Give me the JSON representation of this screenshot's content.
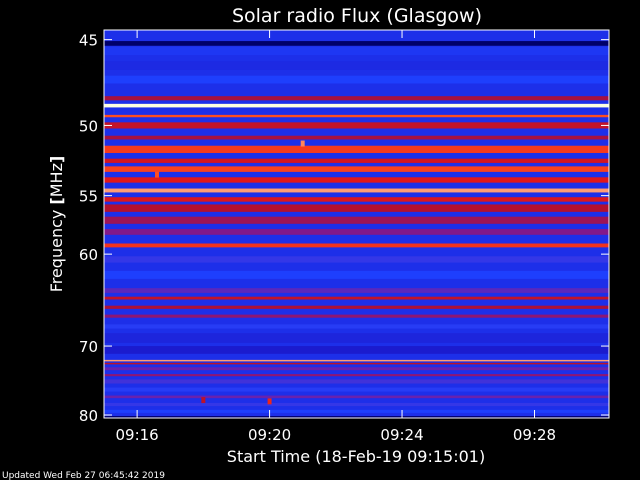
{
  "chart_data": {
    "type": "heatmap",
    "title": "Solar radio Flux (Glasgow)",
    "xlabel": "Start Time (18-Feb-19 09:15:01)",
    "ylabel_main": "Frequency",
    "ylabel_unit": "MHz",
    "x_ticks": [
      "09:16",
      "09:20",
      "09:24",
      "09:28"
    ],
    "x_tick_minutes": [
      1,
      5,
      9,
      13
    ],
    "x_range_minutes": [
      0,
      15.25
    ],
    "y_ticks": [
      45,
      50,
      55,
      60,
      70,
      80
    ],
    "y_scale": "reciprocal",
    "y_range": [
      44.5,
      80.5
    ],
    "colormap": [
      "#00006a",
      "#1c1cd0",
      "#1e40ff",
      "#7a1a9a",
      "#b01030",
      "#e81818",
      "#ff5020",
      "#ffffe0"
    ],
    "background_intensity": 0.22,
    "bands": [
      {
        "freq": 45.2,
        "intensity": 0.0,
        "width": 0.25
      },
      {
        "freq": 45.6,
        "intensity": 0.25,
        "width": 0.45
      },
      {
        "freq": 46.4,
        "intensity": 0.2,
        "width": 0.5
      },
      {
        "freq": 47.2,
        "intensity": 0.28,
        "width": 0.45
      },
      {
        "freq": 48.3,
        "intensity": 0.55,
        "width": 0.25
      },
      {
        "freq": 48.75,
        "intensity": 1.0,
        "width": 0.22
      },
      {
        "freq": 49.4,
        "intensity": 0.85,
        "width": 0.15
      },
      {
        "freq": 50.0,
        "intensity": 0.62,
        "width": 0.4
      },
      {
        "freq": 50.8,
        "intensity": 0.55,
        "width": 0.25
      },
      {
        "freq": 51.6,
        "intensity": 0.8,
        "width": 0.5
      },
      {
        "freq": 52.4,
        "intensity": 0.66,
        "width": 0.3
      },
      {
        "freq": 53.0,
        "intensity": 0.82,
        "width": 0.4
      },
      {
        "freq": 53.8,
        "intensity": 0.7,
        "width": 0.4
      },
      {
        "freq": 54.6,
        "intensity": 0.92,
        "width": 0.3
      },
      {
        "freq": 55.3,
        "intensity": 0.68,
        "width": 0.35
      },
      {
        "freq": 56.0,
        "intensity": 0.58,
        "width": 0.6
      },
      {
        "freq": 57.0,
        "intensity": 0.52,
        "width": 0.6
      },
      {
        "freq": 58.0,
        "intensity": 0.45,
        "width": 0.5
      },
      {
        "freq": 59.2,
        "intensity": 0.78,
        "width": 0.35
      },
      {
        "freq": 60.5,
        "intensity": 0.32,
        "width": 0.6
      },
      {
        "freq": 62.0,
        "intensity": 0.28,
        "width": 0.8
      },
      {
        "freq": 63.6,
        "intensity": 0.38,
        "width": 0.5
      },
      {
        "freq": 64.4,
        "intensity": 0.62,
        "width": 0.3
      },
      {
        "freq": 65.4,
        "intensity": 0.56,
        "width": 0.35
      },
      {
        "freq": 66.4,
        "intensity": 0.48,
        "width": 0.35
      },
      {
        "freq": 67.6,
        "intensity": 0.3,
        "width": 0.5
      },
      {
        "freq": 69.0,
        "intensity": 0.18,
        "width": 1.2
      },
      {
        "freq": 70.5,
        "intensity": 0.14,
        "width": 1.0
      },
      {
        "freq": 71.9,
        "intensity": 0.92,
        "width": 0.2
      },
      {
        "freq": 72.3,
        "intensity": 0.6,
        "width": 0.2
      },
      {
        "freq": 73.0,
        "intensity": 0.4,
        "width": 0.4
      },
      {
        "freq": 73.9,
        "intensity": 0.48,
        "width": 0.3
      },
      {
        "freq": 74.8,
        "intensity": 0.34,
        "width": 0.6
      },
      {
        "freq": 76.0,
        "intensity": 0.3,
        "width": 0.6
      },
      {
        "freq": 77.1,
        "intensity": 0.4,
        "width": 0.4
      },
      {
        "freq": 78.3,
        "intensity": 0.32,
        "width": 0.5
      },
      {
        "freq": 79.4,
        "intensity": 0.28,
        "width": 0.5
      },
      {
        "freq": 80.3,
        "intensity": 0.0,
        "width": 0.25
      }
    ],
    "spikes": [
      {
        "minute": 6.0,
        "freq": 51.2,
        "intensity": 0.9
      },
      {
        "minute": 1.6,
        "freq": 53.4,
        "intensity": 0.85
      },
      {
        "minute": 5.0,
        "freq": 77.8,
        "intensity": 0.75
      },
      {
        "minute": 3.0,
        "freq": 77.6,
        "intensity": 0.6
      }
    ],
    "grid": false,
    "legend": "none"
  },
  "footer": {
    "updated": "Updated Wed Feb 27 06:45:42 2019"
  }
}
